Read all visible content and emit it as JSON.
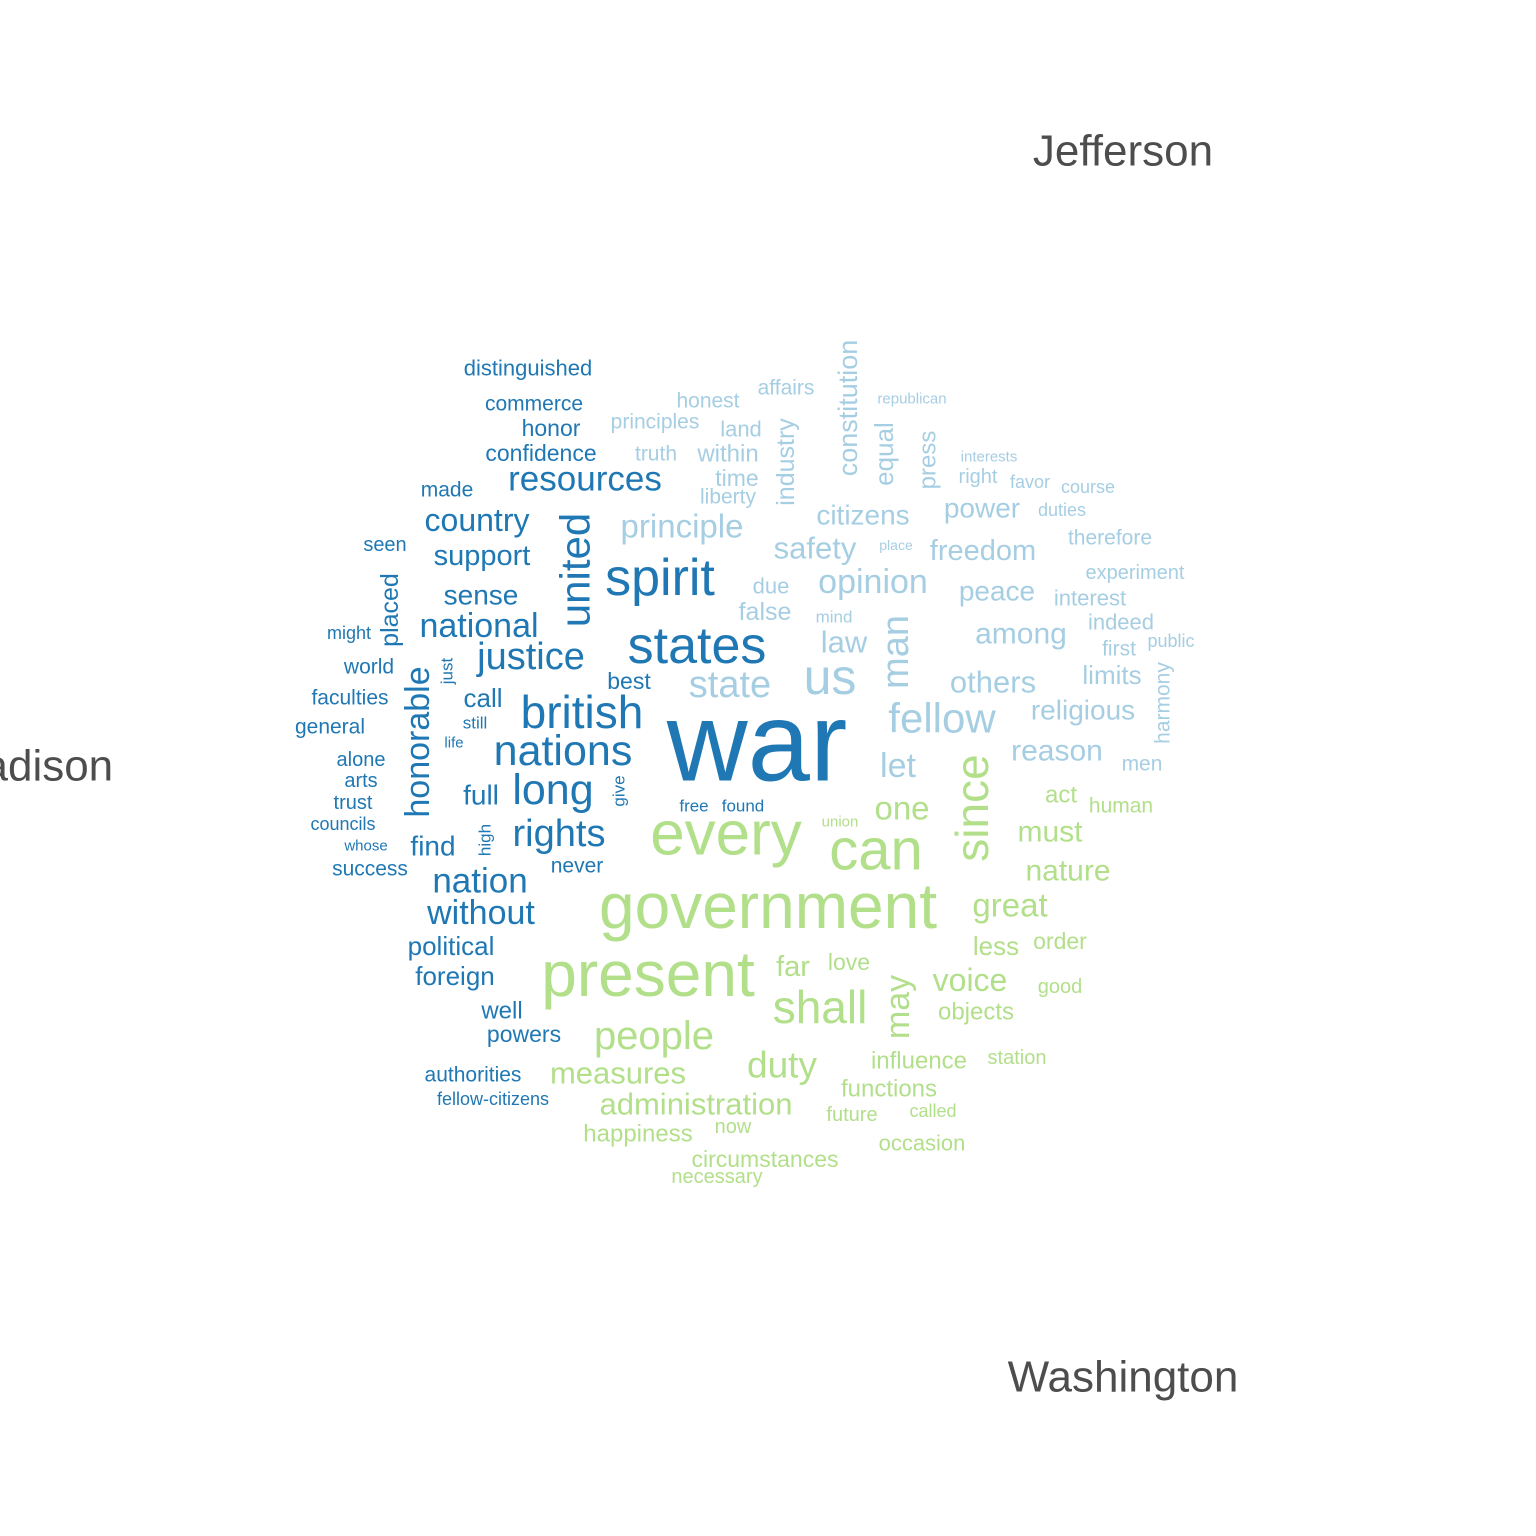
{
  "chart_data": {
    "type": "comparison-wordcloud",
    "groups": [
      {
        "name": "Jefferson",
        "color": "#a6cee3"
      },
      {
        "name": "Madison",
        "color": "#1f78b4"
      },
      {
        "name": "Washington",
        "color": "#b2df8a"
      }
    ],
    "words": [
      {
        "text": "war",
        "group": "Madison",
        "weight": 100
      },
      {
        "text": "government",
        "group": "Washington",
        "weight": 68
      },
      {
        "text": "present",
        "group": "Washington",
        "weight": 68
      },
      {
        "text": "every",
        "group": "Washington",
        "weight": 66
      },
      {
        "text": "can",
        "group": "Washington",
        "weight": 62
      },
      {
        "text": "spirit",
        "group": "Madison",
        "weight": 57
      },
      {
        "text": "states",
        "group": "Madison",
        "weight": 56
      },
      {
        "text": "us",
        "group": "Jefferson",
        "weight": 55
      },
      {
        "text": "since",
        "group": "Washington",
        "weight": 51
      },
      {
        "text": "shall",
        "group": "Washington",
        "weight": 50
      },
      {
        "text": "british",
        "group": "Madison",
        "weight": 50
      },
      {
        "text": "nations",
        "group": "Madison",
        "weight": 47
      },
      {
        "text": "long",
        "group": "Madison",
        "weight": 47
      },
      {
        "text": "united",
        "group": "Madison",
        "weight": 46
      },
      {
        "text": "fellow",
        "group": "Jefferson",
        "weight": 45
      },
      {
        "text": "people",
        "group": "Washington",
        "weight": 44
      },
      {
        "text": "man",
        "group": "Jefferson",
        "weight": 42
      },
      {
        "text": "justice",
        "group": "Madison",
        "weight": 41
      },
      {
        "text": "state",
        "group": "Jefferson",
        "weight": 41
      },
      {
        "text": "rights",
        "group": "Madison",
        "weight": 41
      },
      {
        "text": "duty",
        "group": "Washington",
        "weight": 40
      },
      {
        "text": "honorable",
        "group": "Madison",
        "weight": 38
      },
      {
        "text": "may",
        "group": "Washington",
        "weight": 38
      },
      {
        "text": "nation",
        "group": "Madison",
        "weight": 38
      },
      {
        "text": "resources",
        "group": "Madison",
        "weight": 38
      },
      {
        "text": "let",
        "group": "Jefferson",
        "weight": 37
      },
      {
        "text": "without",
        "group": "Madison",
        "weight": 37
      },
      {
        "text": "national",
        "group": "Madison",
        "weight": 37
      },
      {
        "text": "opinion",
        "group": "Jefferson",
        "weight": 37
      },
      {
        "text": "principle",
        "group": "Jefferson",
        "weight": 36
      },
      {
        "text": "great",
        "group": "Washington",
        "weight": 36
      },
      {
        "text": "one",
        "group": "Washington",
        "weight": 36
      },
      {
        "text": "voice",
        "group": "Washington",
        "weight": 35
      },
      {
        "text": "country",
        "group": "Madison",
        "weight": 35
      },
      {
        "text": "measures",
        "group": "Washington",
        "weight": 34
      },
      {
        "text": "administration",
        "group": "Washington",
        "weight": 34
      },
      {
        "text": "others",
        "group": "Jefferson",
        "weight": 34
      },
      {
        "text": "law",
        "group": "Jefferson",
        "weight": 34
      },
      {
        "text": "safety",
        "group": "Jefferson",
        "weight": 33
      },
      {
        "text": "among",
        "group": "Jefferson",
        "weight": 33
      },
      {
        "text": "nature",
        "group": "Washington",
        "weight": 33
      },
      {
        "text": "must",
        "group": "Washington",
        "weight": 33
      },
      {
        "text": "reason",
        "group": "Jefferson",
        "weight": 33
      },
      {
        "text": "freedom",
        "group": "Jefferson",
        "weight": 32
      },
      {
        "text": "support",
        "group": "Madison",
        "weight": 32
      },
      {
        "text": "far",
        "group": "Washington",
        "weight": 32
      },
      {
        "text": "citizens",
        "group": "Jefferson",
        "weight": 31
      },
      {
        "text": "religious",
        "group": "Jefferson",
        "weight": 31
      },
      {
        "text": "power",
        "group": "Jefferson",
        "weight": 31
      },
      {
        "text": "peace",
        "group": "Jefferson",
        "weight": 31
      },
      {
        "text": "sense",
        "group": "Madison",
        "weight": 30
      },
      {
        "text": "constitution",
        "group": "Jefferson",
        "weight": 30
      },
      {
        "text": "find",
        "group": "Madison",
        "weight": 30
      },
      {
        "text": "full",
        "group": "Madison",
        "weight": 30
      },
      {
        "text": "political",
        "group": "Madison",
        "weight": 29
      },
      {
        "text": "foreign",
        "group": "Madison",
        "weight": 29
      },
      {
        "text": "less",
        "group": "Washington",
        "weight": 29
      },
      {
        "text": "call",
        "group": "Madison",
        "weight": 29
      },
      {
        "text": "limits",
        "group": "Jefferson",
        "weight": 29
      },
      {
        "text": "equal",
        "group": "Jefferson",
        "weight": 29
      },
      {
        "text": "industry",
        "group": "Jefferson",
        "weight": 28
      },
      {
        "text": "false",
        "group": "Jefferson",
        "weight": 28
      },
      {
        "text": "placed",
        "group": "Madison",
        "weight": 28
      },
      {
        "text": "influence",
        "group": "Washington",
        "weight": 27
      },
      {
        "text": "happiness",
        "group": "Washington",
        "weight": 27
      },
      {
        "text": "within",
        "group": "Jefferson",
        "weight": 27
      },
      {
        "text": "press",
        "group": "Jefferson",
        "weight": 27
      },
      {
        "text": "objects",
        "group": "Washington",
        "weight": 27
      },
      {
        "text": "functions",
        "group": "Washington",
        "weight": 27
      },
      {
        "text": "well",
        "group": "Madison",
        "weight": 27
      },
      {
        "text": "act",
        "group": "Washington",
        "weight": 27
      },
      {
        "text": "confidence",
        "group": "Madison",
        "weight": 26
      },
      {
        "text": "love",
        "group": "Washington",
        "weight": 26
      },
      {
        "text": "best",
        "group": "Madison",
        "weight": 26
      },
      {
        "text": "circumstances",
        "group": "Washington",
        "weight": 26
      },
      {
        "text": "powers",
        "group": "Madison",
        "weight": 26
      },
      {
        "text": "order",
        "group": "Washington",
        "weight": 26
      },
      {
        "text": "time",
        "group": "Jefferson",
        "weight": 26
      },
      {
        "text": "honor",
        "group": "Madison",
        "weight": 26
      },
      {
        "text": "distinguished",
        "group": "Madison",
        "weight": 25
      },
      {
        "text": "authorities",
        "group": "Madison",
        "weight": 24
      },
      {
        "text": "interest",
        "group": "Jefferson",
        "weight": 25
      },
      {
        "text": "due",
        "group": "Jefferson",
        "weight": 25
      },
      {
        "text": "indeed",
        "group": "Jefferson",
        "weight": 25
      },
      {
        "text": "occasion",
        "group": "Washington",
        "weight": 25
      },
      {
        "text": "harmony",
        "group": "Jefferson",
        "weight": 24
      },
      {
        "text": "land",
        "group": "Jefferson",
        "weight": 25
      },
      {
        "text": "honest",
        "group": "Jefferson",
        "weight": 24
      },
      {
        "text": "affairs",
        "group": "Jefferson",
        "weight": 24
      },
      {
        "text": "principles",
        "group": "Jefferson",
        "weight": 24
      },
      {
        "text": "liberty",
        "group": "Jefferson",
        "weight": 24
      },
      {
        "text": "truth",
        "group": "Jefferson",
        "weight": 24
      },
      {
        "text": "commerce",
        "group": "Madison",
        "weight": 24
      },
      {
        "text": "first",
        "group": "Jefferson",
        "weight": 24
      },
      {
        "text": "therefore",
        "group": "Jefferson",
        "weight": 24
      },
      {
        "text": "human",
        "group": "Washington",
        "weight": 24
      },
      {
        "text": "men",
        "group": "Jefferson",
        "weight": 23
      },
      {
        "text": "experiment",
        "group": "Jefferson",
        "weight": 23
      },
      {
        "text": "made",
        "group": "Madison",
        "weight": 24
      },
      {
        "text": "never",
        "group": "Madison",
        "weight": 24
      },
      {
        "text": "faculties",
        "group": "Madison",
        "weight": 24
      },
      {
        "text": "world",
        "group": "Madison",
        "weight": 24
      },
      {
        "text": "seen",
        "group": "Madison",
        "weight": 23
      },
      {
        "text": "general",
        "group": "Madison",
        "weight": 24
      },
      {
        "text": "alone",
        "group": "Madison",
        "weight": 23
      },
      {
        "text": "arts",
        "group": "Madison",
        "weight": 23
      },
      {
        "text": "trust",
        "group": "Madison",
        "weight": 23
      },
      {
        "text": "success",
        "group": "Madison",
        "weight": 24
      },
      {
        "text": "right",
        "group": "Jefferson",
        "weight": 23
      },
      {
        "text": "station",
        "group": "Washington",
        "weight": 23
      },
      {
        "text": "good",
        "group": "Washington",
        "weight": 23
      },
      {
        "text": "future",
        "group": "Washington",
        "weight": 23
      },
      {
        "text": "now",
        "group": "Washington",
        "weight": 22
      },
      {
        "text": "necessary",
        "group": "Washington",
        "weight": 22
      },
      {
        "text": "fellow-citizens",
        "group": "Madison",
        "weight": 21
      },
      {
        "text": "councils",
        "group": "Madison",
        "weight": 21
      },
      {
        "text": "might",
        "group": "Madison",
        "weight": 21
      },
      {
        "text": "called",
        "group": "Washington",
        "weight": 21
      },
      {
        "text": "public",
        "group": "Jefferson",
        "weight": 21
      },
      {
        "text": "course",
        "group": "Jefferson",
        "weight": 21
      },
      {
        "text": "favor",
        "group": "Jefferson",
        "weight": 21
      },
      {
        "text": "duties",
        "group": "Jefferson",
        "weight": 20
      },
      {
        "text": "mind",
        "group": "Jefferson",
        "weight": 20
      },
      {
        "text": "still",
        "group": "Madison",
        "weight": 20
      },
      {
        "text": "just",
        "group": "Madison",
        "weight": 20
      },
      {
        "text": "high",
        "group": "Madison",
        "weight": 20
      },
      {
        "text": "give",
        "group": "Madison",
        "weight": 20
      },
      {
        "text": "free",
        "group": "Madison",
        "weight": 19
      },
      {
        "text": "found",
        "group": "Madison",
        "weight": 19
      },
      {
        "text": "whose",
        "group": "Madison",
        "weight": 18
      },
      {
        "text": "life",
        "group": "Madison",
        "weight": 18
      },
      {
        "text": "union",
        "group": "Washington",
        "weight": 18
      },
      {
        "text": "republican",
        "group": "Jefferson",
        "weight": 18
      },
      {
        "text": "interests",
        "group": "Jefferson",
        "weight": 18
      },
      {
        "text": "place",
        "group": "Jefferson",
        "weight": 17
      }
    ]
  }
}
